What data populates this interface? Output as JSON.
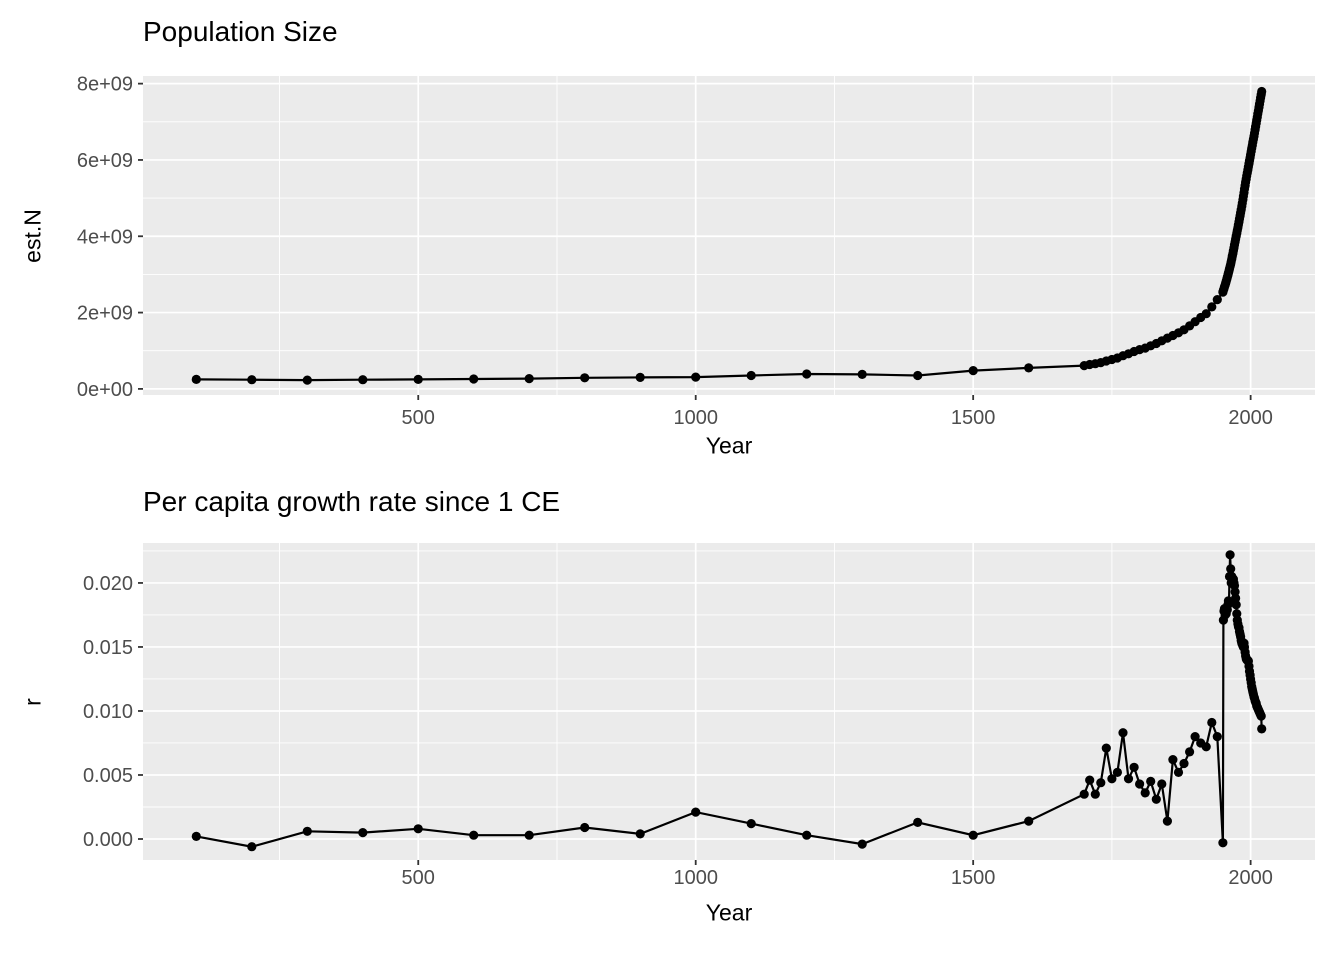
{
  "style": {
    "page_background": "#FFFFFF",
    "panel_background": "#EBEBEB",
    "grid_color": "#FFFFFF",
    "series_color": "#000000",
    "tick_label_color": "#4D4D4D",
    "tick_mark_color": "#333333",
    "title_color": "#000000"
  },
  "chart_data": [
    {
      "type": "line",
      "title": "Population Size",
      "xlabel": "Year",
      "ylabel": "est.N",
      "legend": "none",
      "grid": true,
      "x_domain": [
        4,
        2116
      ],
      "y_domain": [
        -160000000,
        8200000000
      ],
      "x_ticks": {
        "values": [
          500,
          1000,
          1500,
          2000
        ],
        "labels": [
          "500",
          "1000",
          "1500",
          "2000"
        ]
      },
      "x_minor": [
        250,
        750,
        1250,
        1750
      ],
      "y_ticks": {
        "values": [
          0,
          2000000000,
          4000000000,
          6000000000,
          8000000000
        ],
        "labels": [
          "0e+00",
          "2e+09",
          "4e+09",
          "6e+09",
          "8e+09"
        ]
      },
      "y_minor": [
        1000000000,
        3000000000,
        5000000000,
        7000000000
      ],
      "series": [
        {
          "name": "est.N",
          "points": [
            [
              100,
              250000000.0
            ],
            [
              200,
              240000000.0
            ],
            [
              300,
              230000000.0
            ],
            [
              400,
              240000000.0
            ],
            [
              500,
              250000000.0
            ],
            [
              600,
              260000000.0
            ],
            [
              700,
              270000000.0
            ],
            [
              800,
              290000000.0
            ],
            [
              900,
              300000000.0
            ],
            [
              1000,
              310000000.0
            ],
            [
              1100,
              350000000.0
            ],
            [
              1200,
              390000000.0
            ],
            [
              1300,
              380000000.0
            ],
            [
              1400,
              350000000.0
            ],
            [
              1500,
              480000000.0
            ],
            [
              1600,
              550000000.0
            ],
            [
              1700,
              610000000.0
            ],
            [
              1710,
              640000000.0
            ],
            [
              1720,
              660000000.0
            ],
            [
              1730,
              690000000.0
            ],
            [
              1740,
              730000000.0
            ],
            [
              1750,
              770000000.0
            ],
            [
              1760,
              810000000.0
            ],
            [
              1770,
              870000000.0
            ],
            [
              1780,
              920000000.0
            ],
            [
              1790,
              980000000.0
            ],
            [
              1800,
              1030000000.0
            ],
            [
              1810,
              1070000000.0
            ],
            [
              1820,
              1130000000.0
            ],
            [
              1830,
              1190000000.0
            ],
            [
              1840,
              1260000000.0
            ],
            [
              1850,
              1330000000.0
            ],
            [
              1860,
              1400000000.0
            ],
            [
              1870,
              1470000000.0
            ],
            [
              1880,
              1550000000.0
            ],
            [
              1890,
              1650000000.0
            ],
            [
              1900,
              1760000000.0
            ],
            [
              1910,
              1870000000.0
            ],
            [
              1920,
              1970000000.0
            ],
            [
              1930,
              2150000000.0
            ],
            [
              1940,
              2340000000.0
            ],
            [
              1950,
              2536000000.0
            ],
            [
              1951,
              2584000000.0
            ],
            [
              1952,
              2630000000.0
            ],
            [
              1953,
              2677000000.0
            ],
            [
              1954,
              2724000000.0
            ],
            [
              1955,
              2773000000.0
            ],
            [
              1956,
              2822000000.0
            ],
            [
              1957,
              2873000000.0
            ],
            [
              1958,
              2925000000.0
            ],
            [
              1959,
              2979000000.0
            ],
            [
              1960,
              3035000000.0
            ],
            [
              1961,
              3092000000.0
            ],
            [
              1962,
              3150000000.0
            ],
            [
              1963,
              3211000000.0
            ],
            [
              1964,
              3273000000.0
            ],
            [
              1965,
              3339000000.0
            ],
            [
              1966,
              3408000000.0
            ],
            [
              1967,
              3479000000.0
            ],
            [
              1968,
              3551000000.0
            ],
            [
              1969,
              3625000000.0
            ],
            [
              1970,
              3700000000.0
            ],
            [
              1971,
              3775000000.0
            ],
            [
              1972,
              3852000000.0
            ],
            [
              1973,
              3927000000.0
            ],
            [
              1974,
              4003000000.0
            ],
            [
              1975,
              4079000000.0
            ],
            [
              1976,
              4154000000.0
            ],
            [
              1977,
              4229000000.0
            ],
            [
              1978,
              4304000000.0
            ],
            [
              1979,
              4380000000.0
            ],
            [
              1980,
              4458000000.0
            ],
            [
              1981,
              4537000000.0
            ],
            [
              1982,
              4618000000.0
            ],
            [
              1983,
              4699000000.0
            ],
            [
              1984,
              4784000000.0
            ],
            [
              1985,
              4871000000.0
            ],
            [
              1986,
              4963000000.0
            ],
            [
              1987,
              5055000000.0
            ],
            [
              1988,
              5148000000.0
            ],
            [
              1989,
              5240000000.0
            ],
            [
              1990,
              5327000000.0
            ],
            [
              1991,
              5414000000.0
            ],
            [
              1992,
              5499000000.0
            ],
            [
              1993,
              5581000000.0
            ],
            [
              1994,
              5663000000.0
            ],
            [
              1995,
              5744000000.0
            ],
            [
              1996,
              5824000000.0
            ],
            [
              1997,
              5905000000.0
            ],
            [
              1998,
              5984000000.0
            ],
            [
              1999,
              6064000000.0
            ],
            [
              2000,
              6144000000.0
            ],
            [
              2001,
              6223000000.0
            ],
            [
              2002,
              6302000000.0
            ],
            [
              2003,
              6381000000.0
            ],
            [
              2004,
              6462000000.0
            ],
            [
              2005,
              6542000000.0
            ],
            [
              2006,
              6623000000.0
            ],
            [
              2007,
              6706000000.0
            ],
            [
              2008,
              6789000000.0
            ],
            [
              2009,
              6873000000.0
            ],
            [
              2010,
              6957000000.0
            ],
            [
              2011,
              7041000000.0
            ],
            [
              2012,
              7126000000.0
            ],
            [
              2013,
              7211000000.0
            ],
            [
              2014,
              7296000000.0
            ],
            [
              2015,
              7380000000.0
            ],
            [
              2016,
              7464000000.0
            ],
            [
              2017,
              7548000000.0
            ],
            [
              2018,
              7631000000.0
            ],
            [
              2019,
              7713000000.0
            ],
            [
              2020,
              7795000000.0
            ]
          ]
        }
      ]
    },
    {
      "type": "line",
      "title": "Per capita growth rate since 1 CE",
      "xlabel": "Year",
      "ylabel": "r",
      "legend": "none",
      "grid": true,
      "x_domain": [
        4,
        2116
      ],
      "y_domain": [
        -0.00164,
        0.02312
      ],
      "x_ticks": {
        "values": [
          500,
          1000,
          1500,
          2000
        ],
        "labels": [
          "500",
          "1000",
          "1500",
          "2000"
        ]
      },
      "x_minor": [
        250,
        750,
        1250,
        1750
      ],
      "y_ticks": {
        "values": [
          0,
          0.005,
          0.01,
          0.015,
          0.02
        ],
        "labels": [
          "0.000",
          "0.005",
          "0.010",
          "0.015",
          "0.020"
        ]
      },
      "y_minor": [
        0.0025,
        0.0075,
        0.0125,
        0.0175,
        0.0225
      ],
      "series": [
        {
          "name": "r",
          "points": [
            [
              100,
              0.0002
            ],
            [
              200,
              -0.0006
            ],
            [
              300,
              0.0006
            ],
            [
              400,
              0.0005
            ],
            [
              500,
              0.0008
            ],
            [
              600,
              0.0003
            ],
            [
              700,
              0.0003
            ],
            [
              800,
              0.0009
            ],
            [
              900,
              0.0004
            ],
            [
              1000,
              0.0021
            ],
            [
              1100,
              0.0012
            ],
            [
              1200,
              0.0003
            ],
            [
              1300,
              -0.0004
            ],
            [
              1400,
              0.0013
            ],
            [
              1500,
              0.0003
            ],
            [
              1600,
              0.0014
            ],
            [
              1700,
              0.0035
            ],
            [
              1710,
              0.0046
            ],
            [
              1720,
              0.0035
            ],
            [
              1730,
              0.0044
            ],
            [
              1740,
              0.0071
            ],
            [
              1750,
              0.0047
            ],
            [
              1760,
              0.0052
            ],
            [
              1770,
              0.0083
            ],
            [
              1780,
              0.0047
            ],
            [
              1790,
              0.0056
            ],
            [
              1800,
              0.0043
            ],
            [
              1810,
              0.0036
            ],
            [
              1820,
              0.0045
            ],
            [
              1830,
              0.0031
            ],
            [
              1840,
              0.0043
            ],
            [
              1850,
              0.0014
            ],
            [
              1860,
              0.0062
            ],
            [
              1870,
              0.0052
            ],
            [
              1880,
              0.0059
            ],
            [
              1890,
              0.0068
            ],
            [
              1900,
              0.008
            ],
            [
              1910,
              0.0075
            ],
            [
              1920,
              0.0072
            ],
            [
              1930,
              0.0091
            ],
            [
              1940,
              0.008
            ],
            [
              1950,
              -0.0003
            ],
            [
              1951,
              0.0171
            ],
            [
              1952,
              0.0178
            ],
            [
              1953,
              0.018
            ],
            [
              1954,
              0.0175
            ],
            [
              1955,
              0.0179
            ],
            [
              1956,
              0.0176
            ],
            [
              1957,
              0.018
            ],
            [
              1958,
              0.0179
            ],
            [
              1959,
              0.0183
            ],
            [
              1960,
              0.0186
            ],
            [
              1961,
              0.0185
            ],
            [
              1962,
              0.0205
            ],
            [
              1963,
              0.0222
            ],
            [
              1964,
              0.0211
            ],
            [
              1965,
              0.02
            ],
            [
              1966,
              0.0205
            ],
            [
              1967,
              0.0204
            ],
            [
              1968,
              0.0202
            ],
            [
              1969,
              0.0203
            ],
            [
              1970,
              0.02
            ],
            [
              1971,
              0.0198
            ],
            [
              1972,
              0.0193
            ],
            [
              1973,
              0.0188
            ],
            [
              1974,
              0.0183
            ],
            [
              1975,
              0.0176
            ],
            [
              1976,
              0.0171
            ],
            [
              1977,
              0.0168
            ],
            [
              1978,
              0.0166
            ],
            [
              1979,
              0.0165
            ],
            [
              1980,
              0.0162
            ],
            [
              1981,
              0.016
            ],
            [
              1982,
              0.0158
            ],
            [
              1983,
              0.0155
            ],
            [
              1984,
              0.0153
            ],
            [
              1985,
              0.0152
            ],
            [
              1986,
              0.0151
            ],
            [
              1987,
              0.015
            ],
            [
              1988,
              0.0153
            ],
            [
              1989,
              0.015
            ],
            [
              1990,
              0.0146
            ],
            [
              1991,
              0.0143
            ],
            [
              1992,
              0.0141
            ],
            [
              1993,
              0.014
            ],
            [
              1994,
              0.014
            ],
            [
              1995,
              0.0139
            ],
            [
              1996,
              0.0139
            ],
            [
              1997,
              0.0135
            ],
            [
              1998,
              0.0131
            ],
            [
              1999,
              0.0128
            ],
            [
              2000,
              0.0125
            ],
            [
              2001,
              0.0122
            ],
            [
              2002,
              0.0119
            ],
            [
              2003,
              0.0117
            ],
            [
              2004,
              0.0115
            ],
            [
              2005,
              0.0113
            ],
            [
              2006,
              0.0111
            ],
            [
              2007,
              0.011
            ],
            [
              2008,
              0.0108
            ],
            [
              2009,
              0.0107
            ],
            [
              2010,
              0.0106
            ],
            [
              2011,
              0.0104
            ],
            [
              2012,
              0.0103
            ],
            [
              2013,
              0.0102
            ],
            [
              2014,
              0.0101
            ],
            [
              2015,
              0.01
            ],
            [
              2016,
              0.0099
            ],
            [
              2017,
              0.0098
            ],
            [
              2018,
              0.0097
            ],
            [
              2019,
              0.0096
            ],
            [
              2020,
              0.0086
            ]
          ]
        }
      ]
    }
  ]
}
